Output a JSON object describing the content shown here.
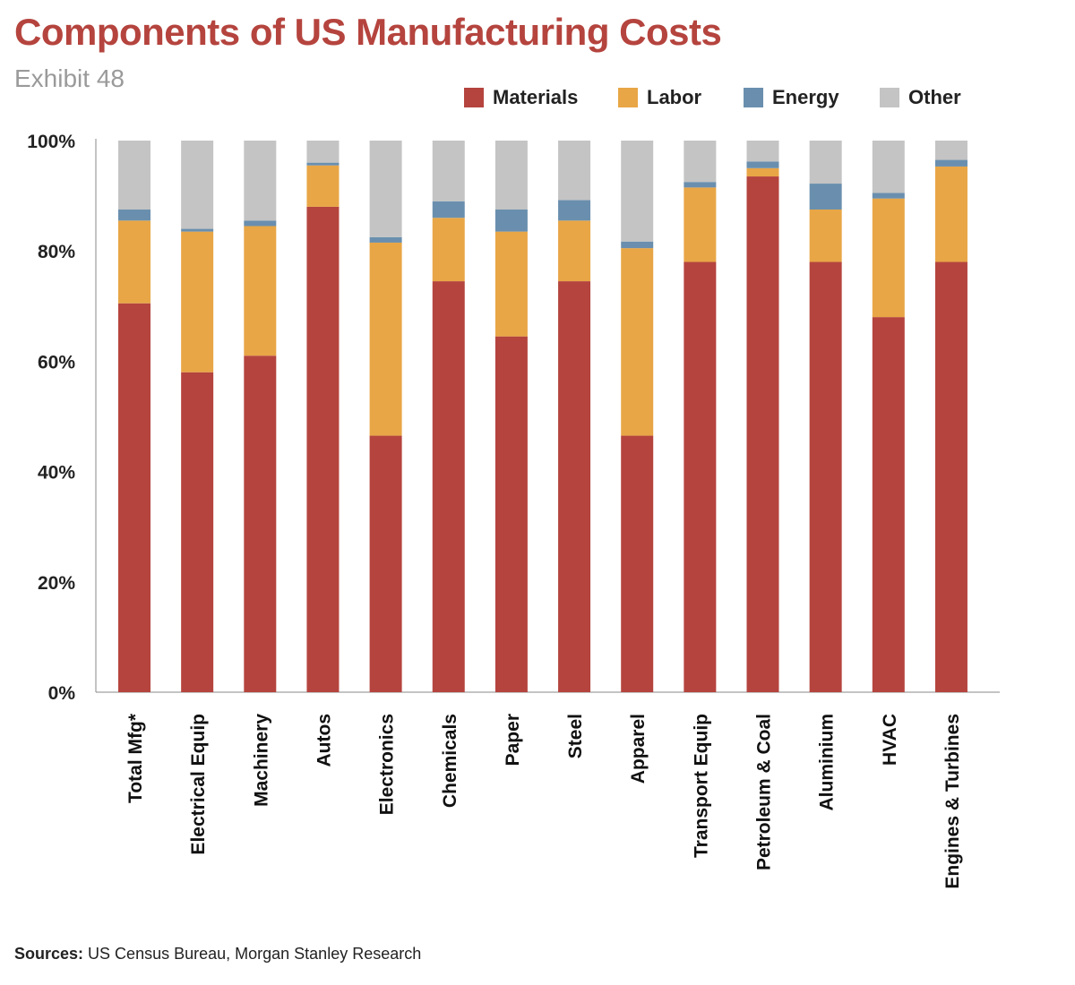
{
  "title": "Components of US Manufacturing Costs",
  "subtitle": "Exhibit 48",
  "source_label": "Sources:",
  "source_text": "US Census Bureau, Morgan Stanley Research",
  "chart_data": {
    "type": "bar",
    "stacked": true,
    "categories": [
      "Total Mfg*",
      "Electrical Equip",
      "Machinery",
      "Autos",
      "Electronics",
      "Chemicals",
      "Paper",
      "Steel",
      "Apparel",
      "Transport Equip",
      "Petroleum & Coal",
      "Aluminium",
      "HVAC",
      "Engines & Turbines"
    ],
    "series": [
      {
        "name": "Materials",
        "color": "#b5443e",
        "values": [
          70.5,
          58,
          61,
          88,
          46.5,
          74.5,
          64.5,
          74.5,
          46.5,
          78,
          93.5,
          78,
          68,
          78
        ]
      },
      {
        "name": "Labor",
        "color": "#e8a646",
        "values": [
          15,
          25.5,
          23.5,
          7.5,
          35,
          11.5,
          19,
          11,
          34,
          13.5,
          1.5,
          9.5,
          21.5,
          17.3
        ]
      },
      {
        "name": "Energy",
        "color": "#6a8fae",
        "values": [
          2,
          0.5,
          1,
          0.5,
          1,
          3,
          4,
          3.7,
          1.2,
          1,
          1.2,
          4.7,
          1,
          1.2
        ]
      },
      {
        "name": "Other",
        "color": "#c4c4c4",
        "values": [
          12.5,
          16,
          14.5,
          4,
          17.5,
          11,
          12.5,
          10.8,
          18.3,
          7.5,
          3.8,
          7.8,
          9.5,
          3.5
        ]
      }
    ],
    "yticks": [
      "0%",
      "20%",
      "40%",
      "60%",
      "80%",
      "100%"
    ],
    "ylim": [
      0,
      100
    ],
    "grid": false,
    "legend_position": "top-right"
  }
}
